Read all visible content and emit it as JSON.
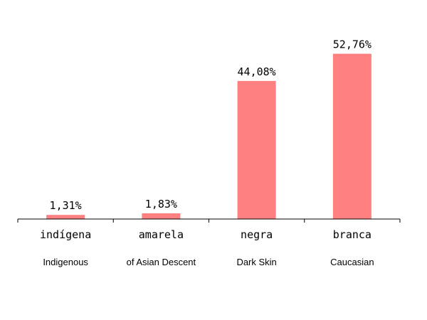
{
  "chart_data": {
    "type": "bar",
    "categories": [
      "indígena",
      "amarela",
      "negra",
      "branca"
    ],
    "category_subtitles": [
      "Indigenous",
      "of Asian Descent",
      "Dark Skin",
      "Caucasian"
    ],
    "values": [
      1.31,
      1.83,
      44.08,
      52.76
    ],
    "value_labels": [
      "1,31%",
      "1,83%",
      "44,08%",
      "52,76%"
    ],
    "ylim": [
      0,
      55
    ],
    "grid": false,
    "legend": "none",
    "bar_color": "#ff8080",
    "axis_color": "#000000"
  }
}
